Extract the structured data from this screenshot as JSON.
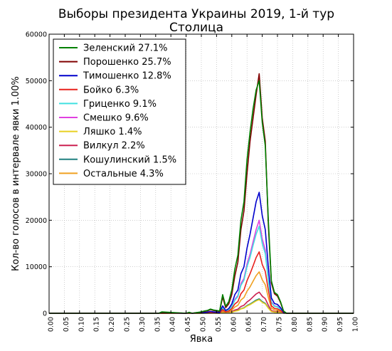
{
  "chart_data": {
    "type": "line",
    "title": "Выборы президента Украины 2019, 1-й тур",
    "subtitle": "Столица",
    "xlabel": "Явка",
    "ylabel": "Кол-во голосов в интервале явки 1.00%",
    "xlim": [
      0.0,
      1.0
    ],
    "ylim": [
      0,
      60000
    ],
    "x_ticks": [
      "0.00",
      "0.05",
      "0.10",
      "0.15",
      "0.20",
      "0.25",
      "0.30",
      "0.35",
      "0.40",
      "0.45",
      "0.50",
      "0.55",
      "0.60",
      "0.65",
      "0.70",
      "0.75",
      "0.80",
      "0.85",
      "0.90",
      "0.95",
      "1.00"
    ],
    "y_ticks": [
      "0",
      "10000",
      "20000",
      "30000",
      "40000",
      "50000",
      "60000"
    ],
    "grid": true,
    "legend_position": "top-left",
    "x": [
      0.0,
      0.36,
      0.37,
      0.45,
      0.46,
      0.47,
      0.48,
      0.49,
      0.5,
      0.51,
      0.52,
      0.53,
      0.54,
      0.55,
      0.56,
      0.57,
      0.58,
      0.59,
      0.6,
      0.61,
      0.62,
      0.63,
      0.64,
      0.65,
      0.66,
      0.67,
      0.68,
      0.69,
      0.7,
      0.71,
      0.72,
      0.73,
      0.74,
      0.75,
      0.76,
      0.77,
      0.78,
      1.0
    ],
    "series": [
      {
        "name": "Зеленский 27.1%",
        "color": "#008000",
        "values": [
          0,
          0,
          300,
          0,
          200,
          0,
          100,
          200,
          300,
          500,
          600,
          900,
          700,
          600,
          500,
          4000,
          1500,
          2500,
          5000,
          9500,
          12500,
          20000,
          24000,
          33000,
          39000,
          44000,
          48000,
          50000,
          41000,
          36000,
          20000,
          7000,
          4500,
          4000,
          2500,
          500,
          0,
          0
        ]
      },
      {
        "name": "Порошенко 25.7%",
        "color": "#800000",
        "values": [
          0,
          0,
          200,
          0,
          150,
          0,
          100,
          150,
          250,
          400,
          500,
          800,
          600,
          500,
          400,
          3500,
          1200,
          2000,
          4000,
          8000,
          11000,
          18000,
          22000,
          30000,
          37000,
          42000,
          47000,
          51500,
          42000,
          37000,
          19000,
          6500,
          4200,
          3700,
          2300,
          400,
          0,
          0
        ]
      },
      {
        "name": "Тимошенко 12.8%",
        "color": "#0000cc",
        "values": [
          0,
          0,
          100,
          0,
          80,
          0,
          50,
          80,
          120,
          200,
          250,
          400,
          300,
          250,
          200,
          1600,
          600,
          1000,
          2000,
          4000,
          5000,
          8500,
          10000,
          14000,
          17000,
          20500,
          24000,
          26000,
          21000,
          18000,
          10000,
          3300,
          2100,
          1900,
          1200,
          200,
          0,
          0
        ]
      },
      {
        "name": "Бойко 6.3%",
        "color": "#e8201c",
        "values": [
          0,
          0,
          50,
          0,
          40,
          0,
          25,
          40,
          60,
          100,
          120,
          200,
          150,
          120,
          100,
          800,
          300,
          500,
          1000,
          2000,
          2500,
          4200,
          5000,
          7000,
          8500,
          10200,
          12000,
          13200,
          10500,
          9000,
          5000,
          1600,
          1050,
          950,
          600,
          100,
          0,
          0
        ]
      },
      {
        "name": "Гриценко 9.1%",
        "color": "#40e0e0",
        "values": [
          0,
          0,
          70,
          0,
          60,
          0,
          35,
          60,
          90,
          150,
          180,
          280,
          220,
          180,
          140,
          1100,
          430,
          700,
          1400,
          2800,
          3600,
          6000,
          7100,
          10000,
          12000,
          14600,
          17000,
          18700,
          15000,
          12800,
          7100,
          2300,
          1500,
          1350,
          850,
          140,
          0,
          0
        ]
      },
      {
        "name": "Смешко 9.6%",
        "color": "#e040e0",
        "values": [
          0,
          0,
          75,
          0,
          65,
          0,
          38,
          65,
          95,
          160,
          190,
          300,
          230,
          190,
          150,
          1200,
          450,
          750,
          1500,
          3000,
          3800,
          6400,
          7500,
          10600,
          12700,
          15400,
          18000,
          20000,
          16000,
          13600,
          7500,
          2450,
          1600,
          1430,
          900,
          150,
          0,
          0
        ]
      },
      {
        "name": "Ляшко 1.4%",
        "color": "#e8d020",
        "values": [
          0,
          0,
          10,
          0,
          9,
          0,
          6,
          9,
          14,
          23,
          28,
          44,
          34,
          28,
          22,
          175,
          66,
          110,
          220,
          440,
          555,
          930,
          1100,
          1550,
          1850,
          2250,
          2650,
          2900,
          2350,
          2000,
          1100,
          360,
          235,
          210,
          130,
          22,
          0,
          0
        ]
      },
      {
        "name": "Вилкул 2.2%",
        "color": "#cc2050",
        "values": [
          0,
          0,
          17,
          0,
          14,
          0,
          9,
          14,
          21,
          36,
          43,
          68,
          52,
          43,
          34,
          275,
          105,
          172,
          345,
          690,
          870,
          1460,
          1730,
          2420,
          2900,
          3530,
          4150,
          4550,
          3680,
          3130,
          1740,
          560,
          370,
          330,
          210,
          35,
          0,
          0
        ]
      },
      {
        "name": "Кошулинский 1.5%",
        "color": "#208080",
        "values": [
          0,
          0,
          12,
          0,
          10,
          0,
          6,
          10,
          15,
          25,
          30,
          47,
          36,
          30,
          24,
          190,
          72,
          118,
          237,
          475,
          595,
          1000,
          1180,
          1660,
          1990,
          2410,
          2840,
          3100,
          2520,
          2140,
          1190,
          385,
          252,
          225,
          140,
          24,
          0,
          0
        ]
      },
      {
        "name": "Остальные 4.3%",
        "color": "#f0a020",
        "values": [
          0,
          0,
          33,
          0,
          28,
          0,
          17,
          28,
          42,
          70,
          85,
          134,
          102,
          85,
          68,
          540,
          206,
          338,
          675,
          1350,
          1700,
          2850,
          3380,
          4740,
          5680,
          6900,
          8100,
          8900,
          7200,
          6130,
          3400,
          1100,
          720,
          645,
          405,
          68,
          0,
          0
        ]
      }
    ]
  }
}
